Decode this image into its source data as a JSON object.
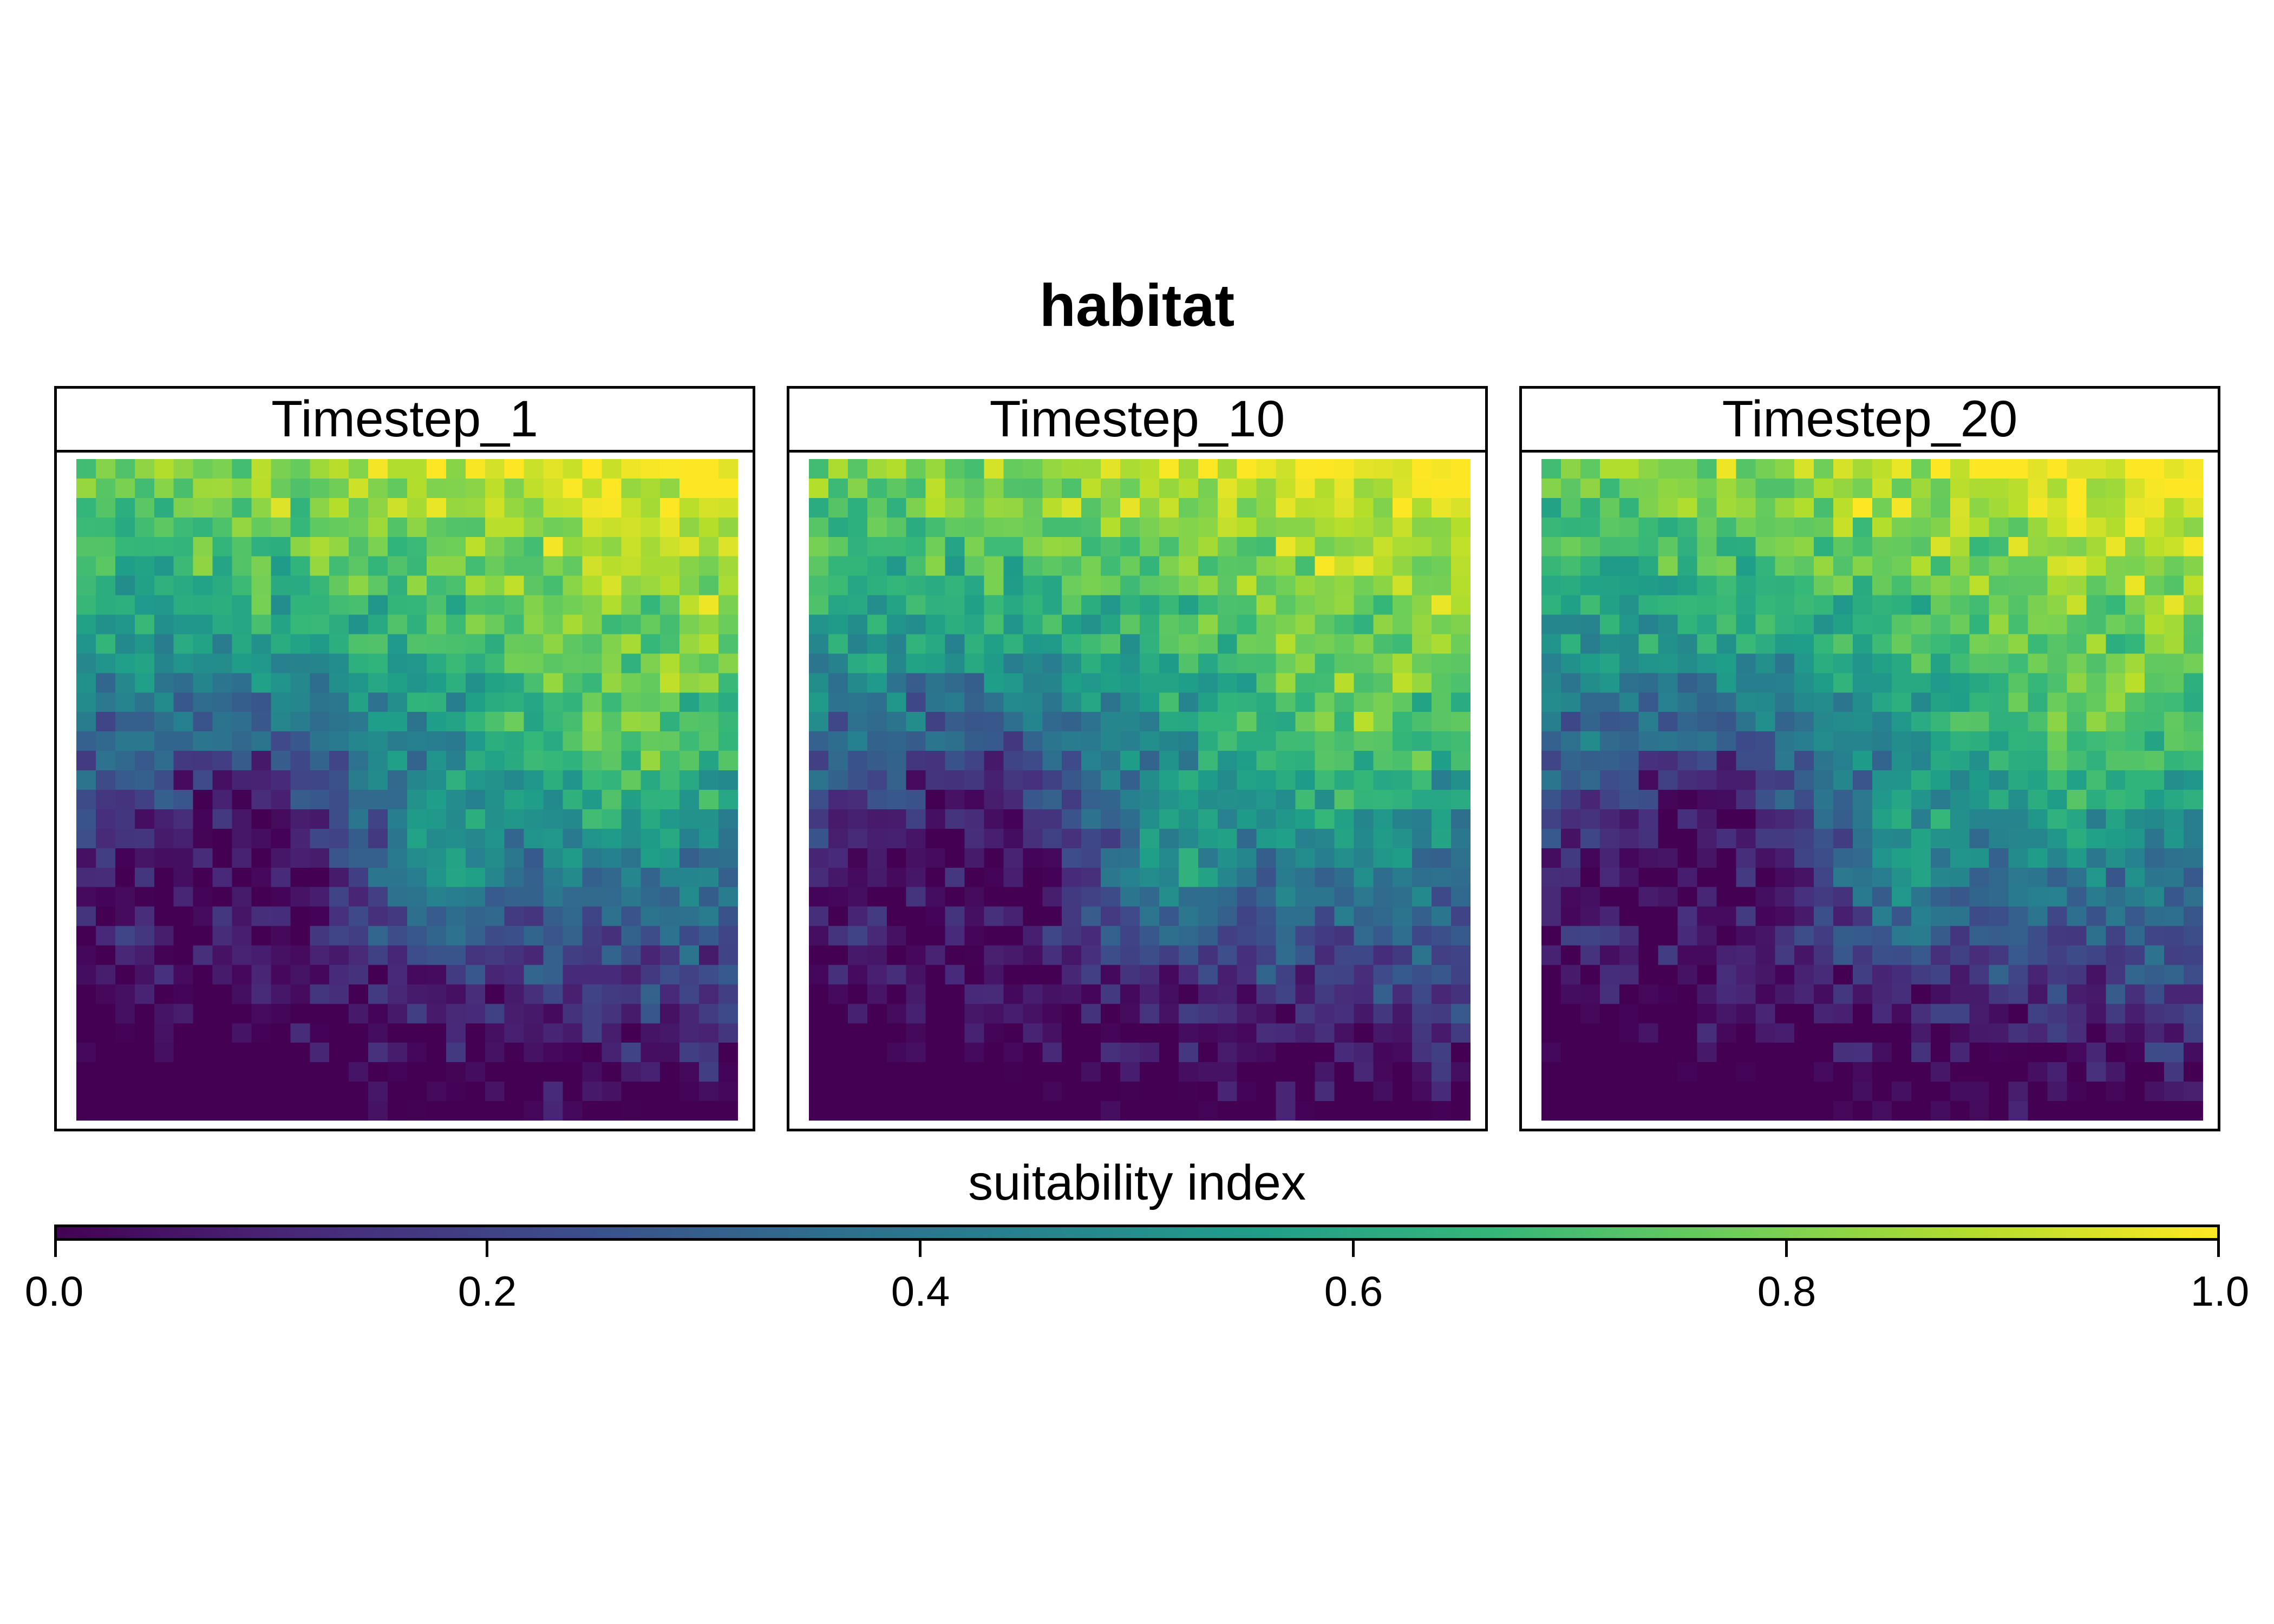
{
  "chart_data": {
    "type": "heatmap",
    "title": "habitat",
    "panels": [
      {
        "label": "Timestep_1",
        "seed": 11
      },
      {
        "label": "Timestep_10",
        "seed": 17
      },
      {
        "label": "Timestep_20",
        "seed": 23
      }
    ],
    "grid": {
      "rows": 34,
      "cols": 34
    },
    "legend": {
      "title": "suitability index",
      "range": [
        0,
        1
      ],
      "ticks": [
        "0.0",
        "0.2",
        "0.4",
        "0.6",
        "0.8",
        "1.0"
      ],
      "tick_values": [
        0,
        0.2,
        0.4,
        0.6,
        0.8,
        1.0
      ],
      "colormap": "viridis",
      "placement": "bottom"
    },
    "colors": [
      "#440154",
      "#482878",
      "#3e4989",
      "#31688e",
      "#26828e",
      "#1f9e89",
      "#35b779",
      "#6ece58",
      "#b5de2b",
      "#fde725"
    ]
  }
}
